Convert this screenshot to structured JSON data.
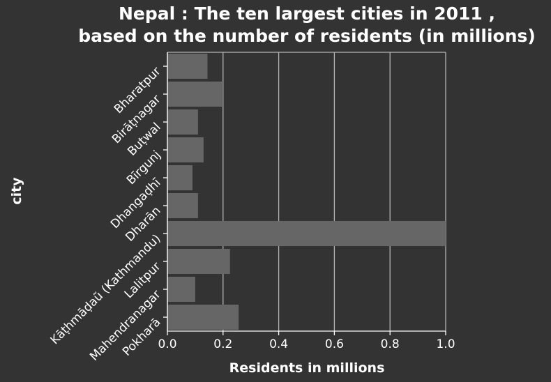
{
  "chart_data": {
    "type": "bar",
    "orientation": "horizontal",
    "title_lines": [
      "Nepal : The ten largest cities in 2011 ,",
      "based on the number of residents (in millions)"
    ],
    "xlabel": "Residents in millions",
    "ylabel": "city",
    "categories": [
      "Bharatpur",
      "Birāṭnagar",
      "Buṭwal",
      "Bīrgunj",
      "Dhangaḍhī",
      "Dharān",
      "Kāṭhmāḍaũ (Kathmandu)",
      "Lalitpur",
      "Mahendranagar",
      "Pokharā"
    ],
    "values": [
      0.144,
      0.2,
      0.11,
      0.13,
      0.09,
      0.11,
      1.0,
      0.225,
      0.1,
      0.256
    ],
    "xlim": [
      0,
      1.0
    ],
    "xticks": [
      "0.0",
      "0.2",
      "0.4",
      "0.6",
      "0.8",
      "1.0"
    ],
    "grid": "vertical",
    "colors": {
      "background": "#333333",
      "bar": "#666666",
      "grid": "#b3b3b3",
      "text": "#ffffff"
    }
  }
}
